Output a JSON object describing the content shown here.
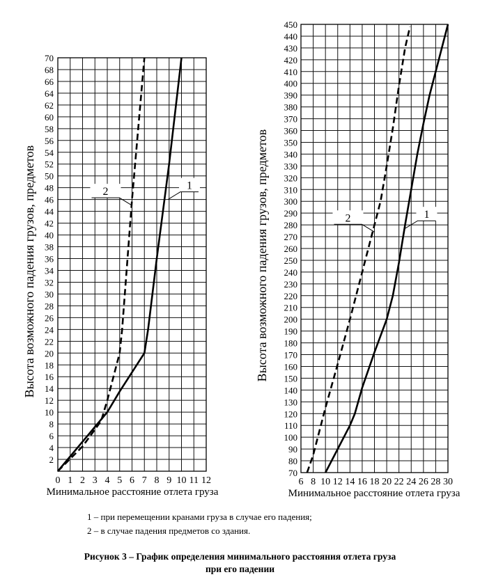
{
  "chart_data": [
    {
      "type": "line",
      "title": "",
      "xlabel": "Минимальное расстояние отлета груза",
      "ylabel": "Высота возможного падения грузов, предметов",
      "xlim": [
        0,
        12
      ],
      "ylim": [
        0,
        70
      ],
      "xticks": [
        0,
        1,
        2,
        3,
        4,
        5,
        6,
        7,
        8,
        9,
        10,
        11,
        12
      ],
      "yticks": [
        2,
        4,
        6,
        8,
        10,
        12,
        14,
        16,
        18,
        20,
        22,
        24,
        26,
        28,
        30,
        32,
        34,
        36,
        38,
        40,
        42,
        44,
        46,
        48,
        50,
        52,
        54,
        56,
        58,
        60,
        62,
        64,
        66,
        68,
        70
      ],
      "x_origin_label": "0",
      "grid": true,
      "series": [
        {
          "name": "1",
          "style": "solid",
          "points": [
            [
              0,
              0
            ],
            [
              4,
              10
            ],
            [
              5,
              13.5
            ],
            [
              7,
              20
            ],
            [
              7.3,
              24
            ],
            [
              8,
              36
            ],
            [
              9,
              52
            ],
            [
              10,
              70
            ]
          ]
        },
        {
          "name": "2",
          "style": "dashed",
          "points": [
            [
              0,
              0
            ],
            [
              2,
              4.2
            ],
            [
              3.5,
              8.5
            ],
            [
              4,
              12
            ],
            [
              5,
              20
            ],
            [
              5.2,
              24
            ],
            [
              6,
              46
            ],
            [
              7,
              70
            ]
          ]
        }
      ],
      "annotations": [
        {
          "text": "1",
          "series": "1",
          "at": [
            8.9,
            46
          ]
        },
        {
          "text": "2",
          "series": "2",
          "at": [
            6,
            45
          ]
        }
      ]
    },
    {
      "type": "line",
      "title": "",
      "xlabel": "Минимальное расстояние отлета груза",
      "ylabel": "Высота возможного падения грузов, предметов",
      "xlim": [
        6,
        30
      ],
      "ylim": [
        70,
        450
      ],
      "xticks": [
        6,
        8,
        10,
        12,
        14,
        16,
        18,
        20,
        22,
        24,
        26,
        28,
        30
      ],
      "yticks": [
        70,
        80,
        90,
        100,
        110,
        120,
        130,
        140,
        150,
        160,
        170,
        180,
        190,
        200,
        210,
        220,
        230,
        240,
        250,
        260,
        270,
        280,
        290,
        300,
        310,
        320,
        330,
        340,
        350,
        360,
        370,
        380,
        390,
        400,
        410,
        420,
        430,
        440,
        450
      ],
      "grid": true,
      "series": [
        {
          "name": "1",
          "style": "solid",
          "points": [
            [
              10,
              70
            ],
            [
              12,
              90
            ],
            [
              14,
              110
            ],
            [
              14.8,
              120
            ],
            [
              16,
              142
            ],
            [
              18,
              172
            ],
            [
              20,
              200
            ],
            [
              21,
              220
            ],
            [
              22,
              248
            ],
            [
              23,
              280
            ],
            [
              24,
              310
            ],
            [
              25,
              340
            ],
            [
              26,
              366
            ],
            [
              27,
              390
            ],
            [
              28,
              410
            ],
            [
              29,
              430
            ],
            [
              30,
              450
            ]
          ]
        },
        {
          "name": "2",
          "style": "dashed",
          "points": [
            [
              7,
              70
            ],
            [
              8,
              85
            ],
            [
              9,
              105
            ],
            [
              10,
              125
            ],
            [
              12,
              162
            ],
            [
              14,
              200
            ],
            [
              16,
              240
            ],
            [
              18,
              280
            ],
            [
              19,
              300
            ],
            [
              20,
              330
            ],
            [
              21,
              362
            ],
            [
              22,
              398
            ],
            [
              23,
              430
            ],
            [
              23.8,
              448
            ]
          ]
        }
      ],
      "annotations": [
        {
          "text": "1",
          "series": "1",
          "at": [
            23,
            277
          ]
        },
        {
          "text": "2",
          "series": "2",
          "at": [
            18,
            274
          ]
        }
      ]
    }
  ],
  "legend": [
    "1 – при перемещении кранами груза в случае его падения;",
    "2 – в случае падения предметов со здания."
  ],
  "caption": {
    "line1": "Рисунок 3 – График определения минимального расстояния отлета груза",
    "line2": "при его падении"
  }
}
